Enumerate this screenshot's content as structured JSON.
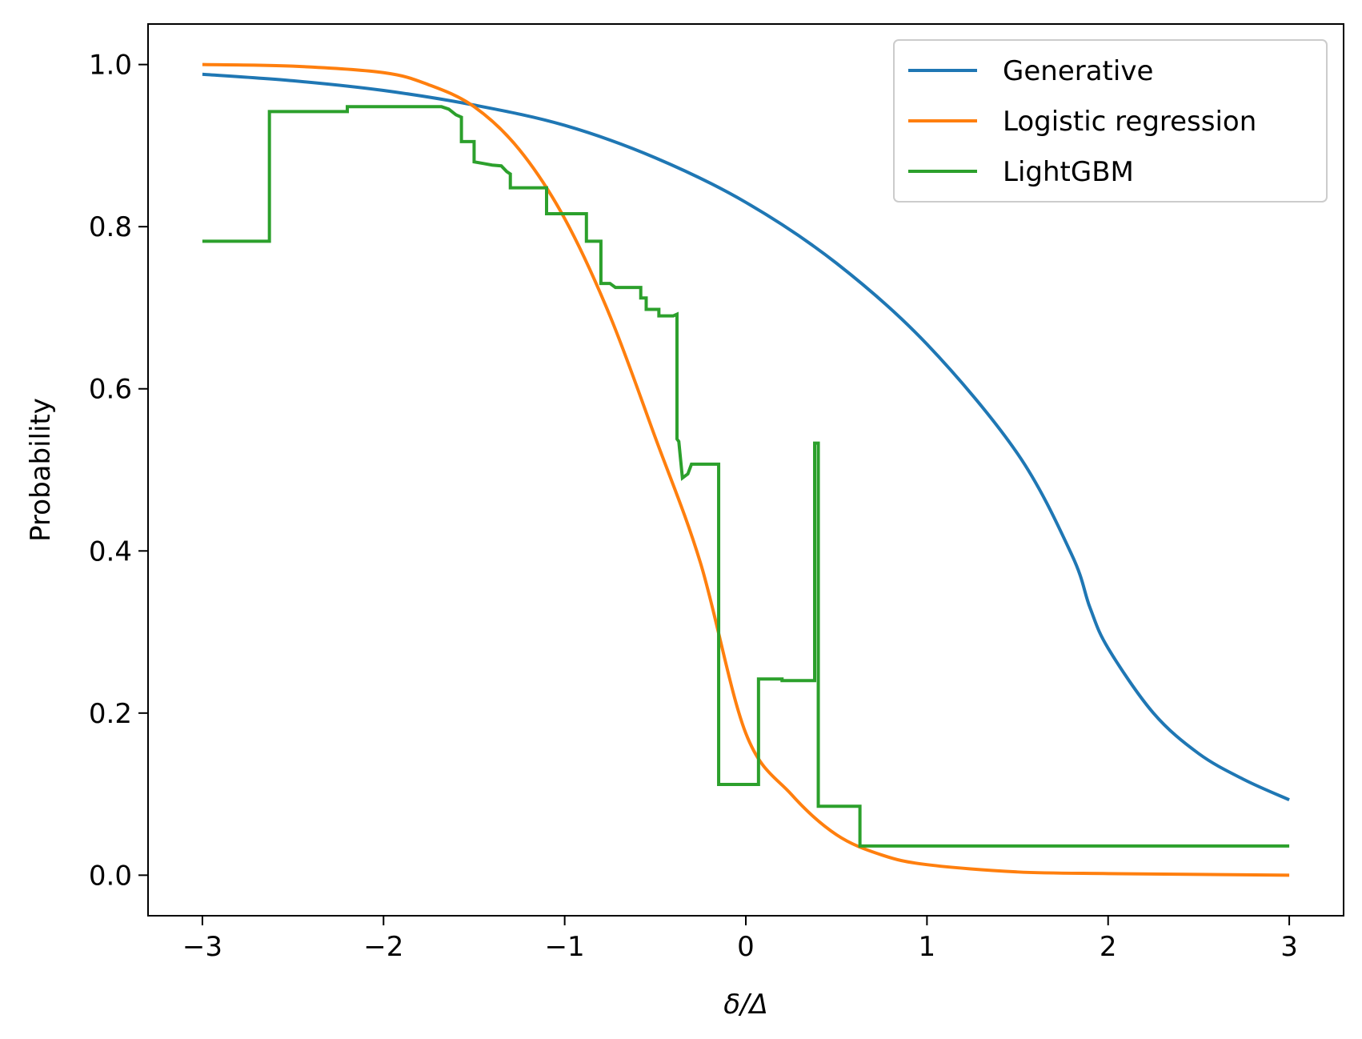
{
  "chart_data": {
    "type": "line",
    "title": "",
    "xlabel": "δ/Δ",
    "ylabel": "Probability",
    "xlim": [
      -3.3,
      3.3
    ],
    "ylim": [
      -0.05,
      1.05
    ],
    "xticks": [
      -3,
      -2,
      -1,
      0,
      1,
      2,
      3
    ],
    "xtick_labels": [
      "−3",
      "−2",
      "−1",
      "0",
      "1",
      "2",
      "3"
    ],
    "yticks": [
      0.0,
      0.2,
      0.4,
      0.6,
      0.8,
      1.0
    ],
    "ytick_labels": [
      "0.0",
      "0.2",
      "0.4",
      "0.6",
      "0.8",
      "1.0"
    ],
    "grid": false,
    "legend_position": "top-right",
    "series": [
      {
        "name": "Generative",
        "color": "#1f77b4",
        "style": "smooth",
        "x": [
          -3.0,
          -2.5,
          -2.0,
          -1.5,
          -1.0,
          -0.5,
          0.0,
          0.5,
          1.0,
          1.5,
          1.8,
          1.9,
          2.0,
          2.25,
          2.5,
          2.75,
          3.0
        ],
        "y": [
          0.988,
          0.98,
          0.968,
          0.95,
          0.925,
          0.885,
          0.83,
          0.755,
          0.655,
          0.52,
          0.395,
          0.33,
          0.28,
          0.2,
          0.15,
          0.118,
          0.093
        ]
      },
      {
        "name": "Logistic regression",
        "color": "#ff7f0e",
        "style": "smooth",
        "x": [
          -3.0,
          -2.5,
          -2.0,
          -1.75,
          -1.5,
          -1.25,
          -1.0,
          -0.75,
          -0.5,
          -0.25,
          0.0,
          0.25,
          0.5,
          0.75,
          1.0,
          1.5,
          2.0,
          2.5,
          3.0
        ],
        "y": [
          1.0,
          0.998,
          0.99,
          0.975,
          0.948,
          0.895,
          0.81,
          0.69,
          0.54,
          0.385,
          0.175,
          0.1,
          0.05,
          0.025,
          0.013,
          0.004,
          0.002,
          0.001,
          0.0
        ]
      },
      {
        "name": "LightGBM",
        "color": "#2ca02c",
        "style": "step",
        "x": [
          -3.0,
          -2.63,
          -2.63,
          -2.2,
          -2.2,
          -1.68,
          -1.64,
          -1.6,
          -1.57,
          -1.57,
          -1.5,
          -1.5,
          -1.45,
          -1.4,
          -1.35,
          -1.32,
          -1.3,
          -1.3,
          -1.1,
          -1.1,
          -0.88,
          -0.88,
          -0.8,
          -0.8,
          -0.75,
          -0.72,
          -0.72,
          -0.58,
          -0.58,
          -0.55,
          -0.55,
          -0.48,
          -0.48,
          -0.4,
          -0.38,
          -0.38,
          -0.37,
          -0.35,
          -0.35,
          -0.32,
          -0.3,
          -0.3,
          -0.15,
          -0.15,
          0.07,
          0.07,
          0.2,
          0.2,
          0.38,
          0.38,
          0.4,
          0.4,
          0.63,
          0.63,
          3.0
        ],
        "y": [
          0.782,
          0.782,
          0.942,
          0.942,
          0.948,
          0.948,
          0.945,
          0.938,
          0.935,
          0.905,
          0.905,
          0.88,
          0.878,
          0.876,
          0.875,
          0.868,
          0.865,
          0.848,
          0.848,
          0.816,
          0.816,
          0.782,
          0.782,
          0.73,
          0.73,
          0.725,
          0.725,
          0.725,
          0.712,
          0.712,
          0.698,
          0.698,
          0.69,
          0.69,
          0.692,
          0.538,
          0.535,
          0.49,
          0.49,
          0.495,
          0.507,
          0.507,
          0.507,
          0.112,
          0.112,
          0.242,
          0.242,
          0.24,
          0.24,
          0.533,
          0.533,
          0.085,
          0.085,
          0.036,
          0.036
        ]
      }
    ]
  }
}
